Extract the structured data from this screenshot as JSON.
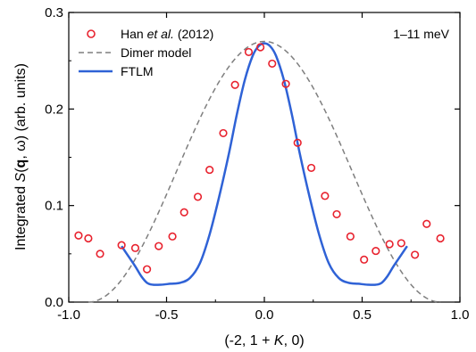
{
  "chart_data": {
    "type": "scatter",
    "xlim": [
      -1.0,
      1.0
    ],
    "ylim": [
      0.0,
      0.3
    ],
    "x_ticks": [
      "-1.0",
      "-0.5",
      "0.0",
      "0.5",
      "1.0"
    ],
    "y_ticks": [
      "0.0",
      "0.1",
      "0.2",
      "0.3"
    ],
    "x_tick_values": [
      -1.0,
      -0.5,
      0.0,
      0.5,
      1.0
    ],
    "y_tick_values": [
      0.0,
      0.1,
      0.2,
      0.3
    ],
    "xlabel": "(-2, 1 + K, 0)",
    "xlabel_parts": {
      "pre": "(-2, 1 + ",
      "italic": "K",
      "post": ", 0)"
    },
    "ylabel": "Integrated S(q, ω) (arb. units)",
    "ylabel_parts": {
      "pre": "Integrated ",
      "italic": "S",
      "open": "(",
      "bold": "q",
      "rest": ", ω) (arb. units)"
    },
    "annotation": "1–11 meV",
    "legend_position": "top-left",
    "series": [
      {
        "name": "Han et al. (2012)",
        "name_parts": {
          "pre": "Han ",
          "italic": "et al.",
          "post": " (2012)"
        },
        "kind": "markers",
        "color": "#e8222e",
        "points": [
          [
            -0.95,
            0.069
          ],
          [
            -0.9,
            0.066
          ],
          [
            -0.84,
            0.05
          ],
          [
            -0.73,
            0.059
          ],
          [
            -0.66,
            0.056
          ],
          [
            -0.6,
            0.034
          ],
          [
            -0.54,
            0.058
          ],
          [
            -0.47,
            0.068
          ],
          [
            -0.41,
            0.093
          ],
          [
            -0.34,
            0.109
          ],
          [
            -0.28,
            0.137
          ],
          [
            -0.21,
            0.175
          ],
          [
            -0.15,
            0.225
          ],
          [
            -0.08,
            0.259
          ],
          [
            -0.02,
            0.264
          ],
          [
            0.04,
            0.247
          ],
          [
            0.11,
            0.226
          ],
          [
            0.17,
            0.165
          ],
          [
            0.24,
            0.139
          ],
          [
            0.31,
            0.11
          ],
          [
            0.37,
            0.091
          ],
          [
            0.44,
            0.068
          ],
          [
            0.51,
            0.044
          ],
          [
            0.57,
            0.053
          ],
          [
            0.64,
            0.06
          ],
          [
            0.7,
            0.061
          ],
          [
            0.77,
            0.049
          ],
          [
            0.83,
            0.081
          ],
          [
            0.9,
            0.066
          ]
        ]
      },
      {
        "name": "Dimer model",
        "kind": "dashed-line",
        "color": "#7f7f7f",
        "amplitude": 0.27,
        "zero": 0.9
      },
      {
        "name": "FTLM",
        "kind": "line",
        "color": "#2f62d6",
        "points": [
          [
            -0.73,
            0.058
          ],
          [
            -0.7,
            0.049
          ],
          [
            -0.66,
            0.037
          ],
          [
            -0.63,
            0.027
          ],
          [
            -0.6,
            0.02
          ],
          [
            -0.57,
            0.018
          ],
          [
            -0.53,
            0.018
          ],
          [
            -0.48,
            0.019
          ],
          [
            -0.43,
            0.02
          ],
          [
            -0.38,
            0.025
          ],
          [
            -0.33,
            0.04
          ],
          [
            -0.28,
            0.07
          ],
          [
            -0.23,
            0.11
          ],
          [
            -0.18,
            0.155
          ],
          [
            -0.14,
            0.195
          ],
          [
            -0.1,
            0.23
          ],
          [
            -0.06,
            0.255
          ],
          [
            -0.03,
            0.265
          ],
          [
            0.0,
            0.268
          ],
          [
            0.03,
            0.265
          ],
          [
            0.06,
            0.255
          ],
          [
            0.1,
            0.23
          ],
          [
            0.14,
            0.195
          ],
          [
            0.18,
            0.155
          ],
          [
            0.23,
            0.11
          ],
          [
            0.28,
            0.07
          ],
          [
            0.33,
            0.04
          ],
          [
            0.38,
            0.025
          ],
          [
            0.43,
            0.02
          ],
          [
            0.48,
            0.019
          ],
          [
            0.53,
            0.018
          ],
          [
            0.57,
            0.018
          ],
          [
            0.6,
            0.02
          ],
          [
            0.63,
            0.027
          ],
          [
            0.66,
            0.037
          ],
          [
            0.7,
            0.049
          ],
          [
            0.73,
            0.058
          ]
        ]
      }
    ]
  }
}
